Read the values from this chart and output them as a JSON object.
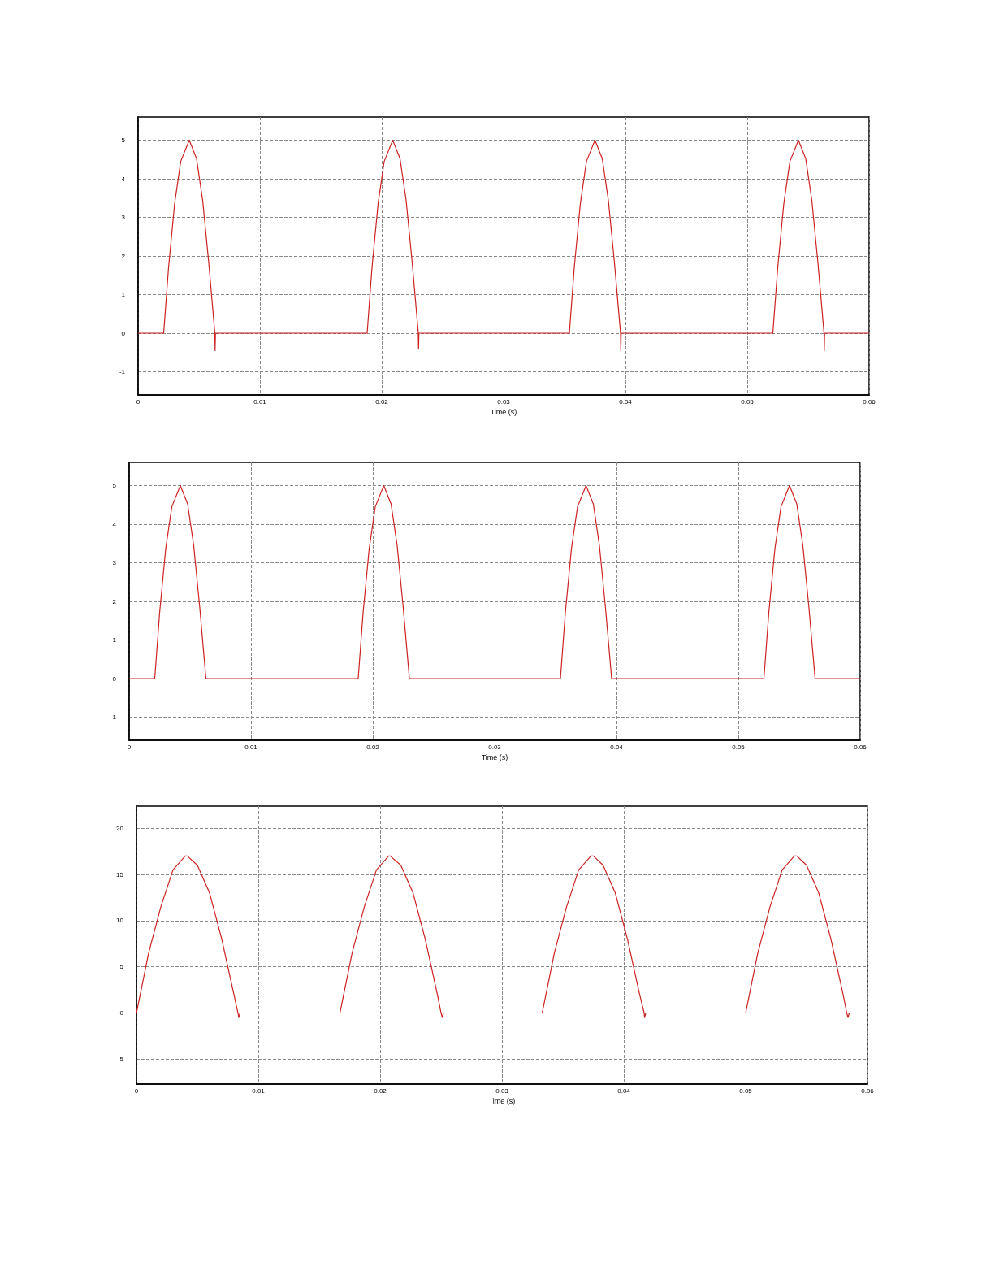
{
  "chart_data": [
    {
      "type": "line",
      "xlabel": "Time (s)",
      "xlim": [
        0,
        0.06
      ],
      "xticks": [
        0,
        0.01,
        0.02,
        0.03,
        0.04,
        0.05,
        0.06
      ],
      "ylim": [
        -1.6,
        5.6
      ],
      "yticks": [
        -1,
        0,
        1,
        2,
        3,
        4,
        5
      ],
      "grid": true,
      "marker": "none",
      "line_style": "solid",
      "series": [
        {
          "color": "#cc2222",
          "x": [
            0,
            0.0021,
            0.0025,
            0.003,
            0.0035,
            0.0042,
            0.0048,
            0.0053,
            0.0058,
            0.0063,
            0.00632,
            0.00635,
            0.0188,
            0.0192,
            0.0197,
            0.0202,
            0.0209,
            0.0215,
            0.022,
            0.0225,
            0.023,
            0.02302,
            0.02305,
            0.0354,
            0.0358,
            0.0363,
            0.0368,
            0.0375,
            0.0381,
            0.0386,
            0.0391,
            0.0396,
            0.03962,
            0.03965,
            0.0521,
            0.0525,
            0.053,
            0.0535,
            0.0542,
            0.0548,
            0.0553,
            0.0558,
            0.0563,
            0.05632,
            0.05635,
            0.06
          ],
          "values": [
            0,
            0,
            1.7,
            3.36,
            4.45,
            5,
            4.52,
            3.44,
            1.82,
            0,
            -0.45,
            0,
            0,
            1.7,
            3.36,
            4.45,
            5,
            4.52,
            3.44,
            1.82,
            0,
            -0.4,
            0,
            0,
            1.7,
            3.36,
            4.45,
            5,
            4.52,
            3.44,
            1.82,
            0,
            -0.45,
            0,
            0,
            1.7,
            3.36,
            4.45,
            5,
            4.52,
            3.44,
            1.82,
            0,
            -0.45,
            0,
            0
          ]
        }
      ]
    },
    {
      "type": "line",
      "xlabel": "Time (s)",
      "xlim": [
        0,
        0.06
      ],
      "xticks": [
        0,
        0.01,
        0.02,
        0.03,
        0.04,
        0.05,
        0.06
      ],
      "ylim": [
        -1.6,
        5.6
      ],
      "yticks": [
        -1,
        0,
        1,
        2,
        3,
        4,
        5
      ],
      "grid": true,
      "marker": "none",
      "line_style": "solid",
      "series": [
        {
          "color": "#cc2222",
          "x": [
            0,
            0.0021,
            0.0025,
            0.003,
            0.0035,
            0.0042,
            0.0048,
            0.0053,
            0.0058,
            0.0063,
            0.0188,
            0.0192,
            0.0197,
            0.0202,
            0.0209,
            0.0215,
            0.022,
            0.0225,
            0.023,
            0.0354,
            0.0358,
            0.0363,
            0.0368,
            0.0375,
            0.0381,
            0.0386,
            0.0391,
            0.0396,
            0.0521,
            0.0525,
            0.053,
            0.0535,
            0.0542,
            0.0548,
            0.0553,
            0.0558,
            0.0563,
            0.06
          ],
          "values": [
            0,
            0,
            1.7,
            3.36,
            4.45,
            5,
            4.52,
            3.44,
            1.82,
            0,
            0,
            1.7,
            3.36,
            4.45,
            5,
            4.52,
            3.44,
            1.82,
            0,
            0,
            1.7,
            3.36,
            4.45,
            5,
            4.52,
            3.44,
            1.82,
            0,
            0,
            1.7,
            3.36,
            4.45,
            5,
            4.52,
            3.44,
            1.82,
            0,
            0
          ]
        }
      ]
    },
    {
      "type": "line",
      "xlabel": "Time (s)",
      "xlim": [
        0,
        0.06
      ],
      "xticks": [
        0,
        0.01,
        0.02,
        0.03,
        0.04,
        0.05,
        0.06
      ],
      "ylim": [
        -7.7,
        22.4
      ],
      "yticks": [
        -5,
        0,
        5,
        10,
        15,
        20
      ],
      "grid": true,
      "marker": "none",
      "line_style": "solid",
      "series": [
        {
          "color": "#cc2222",
          "x": [
            0,
            0.001,
            0.002,
            0.003,
            0.004,
            0.00417,
            0.005,
            0.006,
            0.007,
            0.008,
            0.00833,
            0.0084,
            0.0085,
            0.0167,
            0.0177,
            0.0187,
            0.0197,
            0.0207,
            0.02083,
            0.0217,
            0.0227,
            0.0237,
            0.0247,
            0.025,
            0.0251,
            0.0252,
            0.0333,
            0.0343,
            0.0353,
            0.0363,
            0.0373,
            0.0375,
            0.0383,
            0.0393,
            0.0403,
            0.0413,
            0.04167,
            0.0417,
            0.0418,
            0.05,
            0.051,
            0.052,
            0.053,
            0.054,
            0.0542,
            0.055,
            0.056,
            0.057,
            0.058,
            0.0583,
            0.0584,
            0.0585,
            0.06
          ],
          "values": [
            0,
            6.5,
            11.5,
            15.5,
            17,
            17,
            16,
            13,
            8,
            2,
            0,
            -0.5,
            0,
            0,
            6.5,
            11.5,
            15.5,
            17,
            17,
            16,
            13,
            8,
            2,
            0,
            -0.5,
            0,
            0,
            6.5,
            11.5,
            15.5,
            17,
            17,
            16,
            13,
            8,
            2,
            0,
            -0.5,
            0,
            0,
            6.5,
            11.5,
            15.5,
            17,
            17,
            16,
            13,
            8,
            2,
            0,
            -0.5,
            0,
            0
          ]
        }
      ]
    }
  ]
}
